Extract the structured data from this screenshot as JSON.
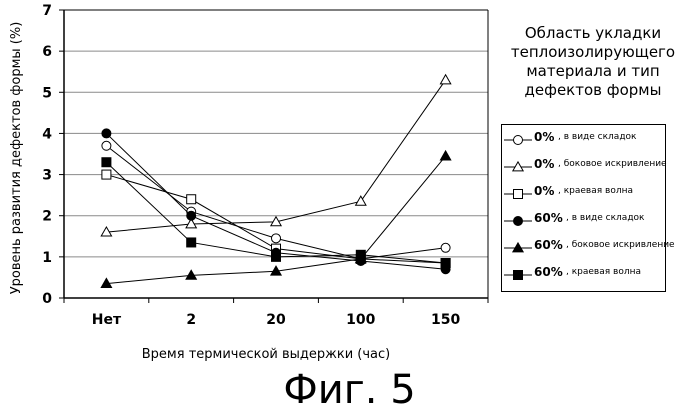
{
  "chart_data": {
    "type": "line",
    "title": "",
    "xlabel": "Время термической выдержки (час)",
    "ylabel": "Уровень развития дефектов формы (%)",
    "categories": [
      "Нет",
      "2",
      "20",
      "100",
      "150"
    ],
    "yticks": [
      0,
      1,
      2,
      3,
      4,
      5,
      6,
      7
    ],
    "ylim": [
      0,
      7
    ],
    "grid": true,
    "legend_title": [
      "Область укладки",
      "теплоизолирующего",
      "материала и тип",
      "дефектов формы"
    ],
    "series": [
      {
        "name": "0%, в виде складок",
        "pct": "0%",
        "desc": ", в виде складок",
        "marker": "circle",
        "filled": false,
        "values": [
          3.7,
          2.1,
          1.45,
          0.95,
          1.22
        ]
      },
      {
        "name": "0%, боковое искривление",
        "pct": "0%",
        "desc": ", боковое искривление",
        "marker": "triangle",
        "filled": false,
        "values": [
          1.6,
          1.8,
          1.85,
          2.35,
          5.3
        ]
      },
      {
        "name": "0%, краевая волна",
        "pct": "0%",
        "desc": ", краевая волна",
        "marker": "square",
        "filled": false,
        "values": [
          3.0,
          2.4,
          1.2,
          0.95,
          0.85
        ]
      },
      {
        "name": "60%, в виде складок",
        "pct": "60%",
        "desc": ", в виде складок",
        "marker": "circle",
        "filled": true,
        "values": [
          4.0,
          2.0,
          1.1,
          0.9,
          0.7
        ]
      },
      {
        "name": "60%, боковое искривление",
        "pct": "60%",
        "desc": ", боковое искривление",
        "marker": "triangle",
        "filled": true,
        "values": [
          0.35,
          0.55,
          0.65,
          0.95,
          3.45
        ]
      },
      {
        "name": "60%, краевая волна",
        "pct": "60%",
        "desc": ", краевая волна",
        "marker": "square",
        "filled": true,
        "values": [
          3.3,
          1.35,
          1.0,
          1.05,
          0.85
        ]
      }
    ]
  },
  "figure_caption": "Фиг. 5"
}
